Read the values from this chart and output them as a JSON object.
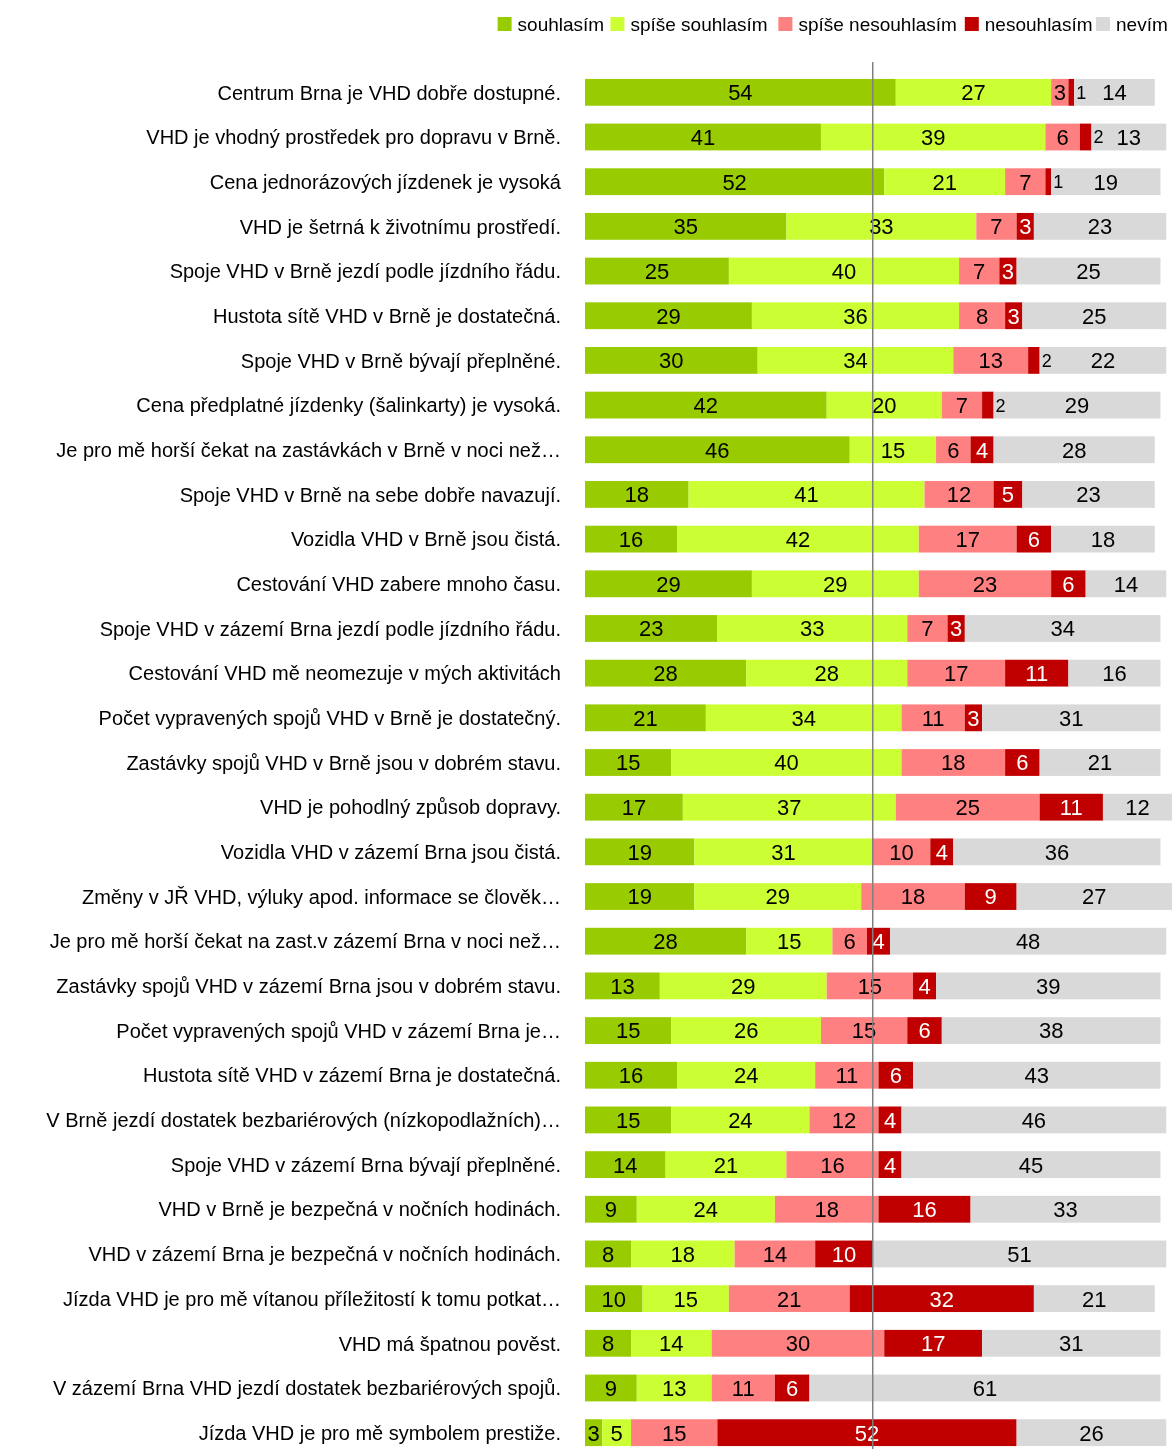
{
  "chart_data": {
    "type": "bar",
    "orientation": "horizontal",
    "stacked": true,
    "data_labels": true,
    "legend": "top",
    "tick_labels": "y",
    "categories": [
      "Centrum Brna je VHD dobře dostupné.",
      "VHD je vhodný prostředek pro dopravu v Brně.",
      "Cena jednorázových jízdenek je vysoká",
      "VHD je šetrná k životnímu prostředí.",
      "Spoje VHD v Brně jezdí podle jízdního řádu.",
      "Hustota sítě VHD v Brně je dostatečná.",
      "Spoje VHD v Brně bývají přeplněné.",
      "Cena předplatné jízdenky (šalinkarty) je vysoká.",
      "Je pro mě horší čekat na zastávkách v Brně v noci než…",
      "Spoje VHD v Brně na sebe dobře navazují.",
      "Vozidla VHD v Brně jsou čistá.",
      "Cestování VHD zabere mnoho času.",
      "Spoje VHD v zázemí Brna jezdí podle jízdního řádu.",
      "Cestování VHD mě neomezuje v mých aktivitách",
      "Počet vypravených spojů VHD v Brně je dostatečný.",
      "Zastávky spojů VHD v Brně jsou v dobrém stavu.",
      "VHD je pohodlný způsob dopravy.",
      "Vozidla VHD v zázemí Brna jsou čistá.",
      "Změny v JŘ VHD, výluky apod. informace se člověk…",
      "Je pro mě  horší čekat na zast.v zázemí Brna v noci než…",
      "Zastávky spojů VHD v zázemí Brna jsou v dobrém stavu.",
      "Počet vypravených spojů VHD v zázemí Brna je…",
      "Hustota sítě VHD v zázemí Brna je dostatečná.",
      "V Brně jezdí dostatek bezbariérových (nízkopodlažních)…",
      "Spoje VHD v zázemí Brna bývají přeplněné.",
      "VHD v Brně je bezpečná v nočních hodinách.",
      "VHD v zázemí Brna je bezpečná v nočních hodinách.",
      "Jízda VHD je pro mě vítanou příležitostí k tomu potkat…",
      "VHD má špatnou pověst.",
      "V zázemí Brna VHD jezdí dostatek bezbariérových spojů.",
      "Jízda VHD je pro mě symbolem prestiže."
    ],
    "xlim": [
      0,
      102
    ],
    "ref_lines": [
      {
        "axis": "x",
        "value": 50,
        "color": "#808080"
      }
    ],
    "series": [
      {
        "name": "souhlasím",
        "color": "#99cc00",
        "values": [
          54,
          41,
          52,
          35,
          25,
          29,
          30,
          42,
          46,
          18,
          16,
          29,
          23,
          28,
          21,
          15,
          17,
          19,
          19,
          28,
          13,
          15,
          16,
          15,
          14,
          9,
          8,
          10,
          8,
          9,
          3
        ]
      },
      {
        "name": "spíše souhlasím",
        "color": "#ccff33",
        "values": [
          27,
          39,
          21,
          33,
          40,
          36,
          34,
          20,
          15,
          41,
          42,
          29,
          33,
          28,
          34,
          40,
          37,
          31,
          29,
          15,
          29,
          26,
          24,
          24,
          21,
          24,
          18,
          15,
          14,
          13,
          5
        ]
      },
      {
        "name": "spíše nesouhlasím",
        "color": "#ff8080",
        "values": [
          3,
          6,
          7,
          7,
          7,
          8,
          13,
          7,
          6,
          12,
          17,
          23,
          7,
          17,
          11,
          18,
          25,
          10,
          18,
          6,
          15,
          15,
          11,
          12,
          16,
          18,
          14,
          21,
          30,
          11,
          15
        ]
      },
      {
        "name": "nesouhlasím",
        "color": "#c00000",
        "values": [
          1,
          2,
          1,
          3,
          3,
          3,
          2,
          2,
          4,
          5,
          6,
          6,
          3,
          11,
          3,
          6,
          11,
          4,
          9,
          4,
          4,
          6,
          6,
          4,
          4,
          16,
          10,
          32,
          17,
          6,
          52
        ]
      },
      {
        "name": "nevím",
        "color": "#d9d9d9",
        "values": [
          14,
          13,
          19,
          23,
          25,
          25,
          22,
          29,
          28,
          23,
          18,
          14,
          34,
          16,
          31,
          21,
          12,
          36,
          27,
          48,
          39,
          38,
          43,
          46,
          45,
          33,
          51,
          21,
          31,
          61,
          26
        ]
      }
    ]
  }
}
